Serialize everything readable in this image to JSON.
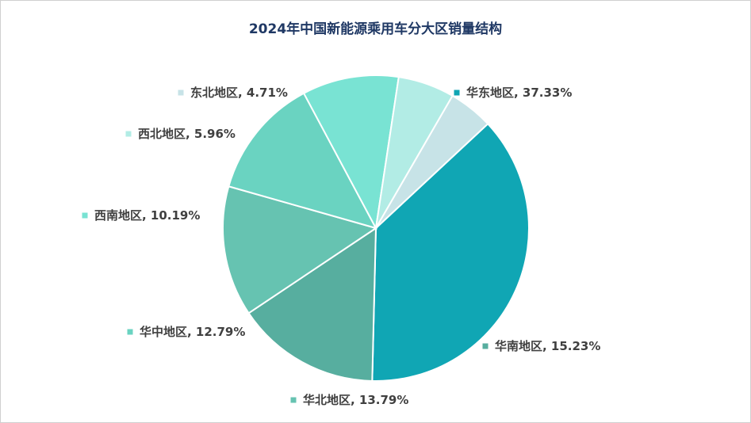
{
  "chart_data": {
    "type": "pie",
    "title": "2024年中国新能源乘用车分大区销量结构",
    "slices": [
      {
        "name": "华东地区",
        "value": 37.33,
        "label": "华东地区, 37.33%",
        "color": "#10a6b4"
      },
      {
        "name": "华南地区",
        "value": 15.23,
        "label": "华南地区, 15.23%",
        "color": "#57ae9f"
      },
      {
        "name": "华北地区",
        "value": 13.79,
        "label": "华北地区, 13.79%",
        "color": "#66c3b1"
      },
      {
        "name": "华中地区",
        "value": 12.79,
        "label": "华中地区, 12.79%",
        "color": "#6ad3c1"
      },
      {
        "name": "西南地区",
        "value": 10.19,
        "label": "西南地区, 10.19%",
        "color": "#79e3d3"
      },
      {
        "name": "西北地区",
        "value": 5.96,
        "label": "西北地区, 5.96%",
        "color": "#b2ece5"
      },
      {
        "name": "东北地区",
        "value": 4.71,
        "label": "东北地区, 4.71%",
        "color": "#c7e3e7"
      }
    ],
    "label_style": "outside with color marker",
    "legend": "none"
  }
}
